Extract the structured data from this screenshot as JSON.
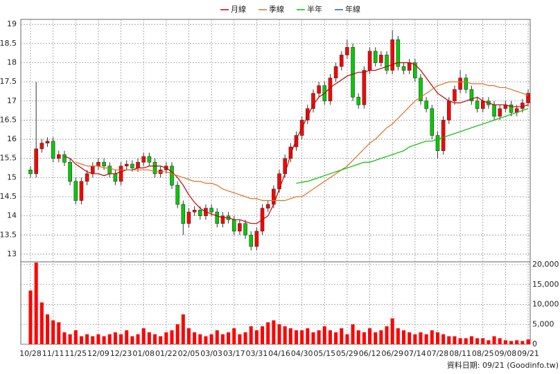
{
  "chart_data": {
    "type": "candlestick",
    "categories": [
      "10/28",
      null,
      null,
      null,
      "11/11",
      null,
      null,
      null,
      "11/25",
      null,
      null,
      null,
      "12/09",
      null,
      null,
      null,
      "12/23",
      null,
      null,
      null,
      "01/08",
      null,
      null,
      null,
      "01/22",
      null,
      null,
      null,
      "02/05",
      null,
      null,
      null,
      "03/03",
      null,
      null,
      null,
      "03/17",
      null,
      null,
      null,
      "03/31",
      null,
      null,
      null,
      "04/16",
      null,
      null,
      null,
      "04/30",
      null,
      null,
      null,
      "05/15",
      null,
      null,
      null,
      "05/29",
      null,
      null,
      null,
      "06/12",
      null,
      null,
      null,
      "06/29",
      null,
      null,
      null,
      "07/14",
      null,
      null,
      null,
      "07/28",
      null,
      null,
      null,
      "08/11",
      null,
      null,
      null,
      "08/25",
      null,
      null,
      null,
      "09/08",
      null,
      null,
      null,
      "09/21"
    ],
    "open": [
      15.2,
      15.1,
      15.75,
      15.9,
      15.95,
      15.5,
      15.6,
      15.4,
      14.9,
      14.4,
      14.9,
      15.1,
      15.3,
      15.4,
      15.3,
      15.1,
      14.9,
      15.3,
      15.35,
      15.25,
      15.4,
      15.55,
      15.4,
      15.1,
      15.2,
      15.3,
      14.8,
      14.3,
      13.8,
      14.1,
      14.15,
      14.0,
      14.2,
      14.1,
      13.8,
      14.0,
      13.9,
      13.6,
      13.8,
      13.5,
      13.2,
      13.6,
      14.2,
      14.3,
      14.7,
      15.1,
      15.5,
      15.8,
      16.1,
      16.5,
      16.8,
      17.2,
      17.4,
      17.0,
      17.6,
      17.9,
      18.2,
      18.4,
      17.1,
      16.9,
      17.8,
      18.3,
      18.0,
      18.2,
      17.8,
      18.6,
      17.9,
      17.8,
      18.0,
      17.6,
      17.0,
      16.8,
      16.1,
      15.7,
      16.5,
      17.0,
      17.3,
      17.6,
      17.3,
      17.0,
      16.8,
      17.0,
      16.9,
      16.6,
      16.8,
      16.9,
      16.7,
      16.8,
      16.95
    ],
    "high": [
      15.3,
      17.5,
      16.0,
      16.05,
      16.05,
      15.7,
      15.7,
      15.5,
      15.0,
      15.0,
      15.2,
      15.4,
      15.5,
      15.5,
      15.4,
      15.2,
      15.4,
      15.45,
      15.45,
      15.5,
      15.65,
      15.65,
      15.5,
      15.3,
      15.4,
      15.4,
      14.9,
      14.4,
      14.2,
      14.25,
      14.25,
      14.3,
      14.3,
      14.2,
      14.1,
      14.1,
      14.0,
      13.9,
      13.9,
      13.6,
      13.7,
      14.3,
      14.4,
      14.8,
      15.2,
      15.6,
      15.9,
      16.2,
      16.6,
      16.9,
      17.3,
      17.5,
      17.5,
      17.7,
      18.0,
      18.3,
      18.6,
      18.5,
      17.2,
      17.9,
      18.4,
      18.4,
      18.3,
      18.3,
      18.85,
      18.7,
      18.0,
      18.1,
      18.1,
      17.7,
      17.1,
      16.9,
      16.2,
      16.6,
      17.1,
      17.4,
      17.8,
      17.7,
      17.4,
      17.1,
      17.1,
      17.1,
      17.0,
      16.9,
      17.0,
      17.0,
      16.9,
      17.05,
      17.3
    ],
    "low": [
      15.0,
      15.0,
      15.65,
      15.8,
      15.4,
      15.4,
      15.3,
      14.8,
      14.3,
      14.3,
      14.8,
      15.0,
      15.2,
      15.2,
      15.0,
      14.8,
      14.8,
      15.2,
      15.15,
      15.15,
      15.3,
      15.3,
      15.0,
      15.0,
      15.1,
      14.7,
      14.2,
      13.5,
      13.7,
      14.0,
      13.9,
      13.9,
      14.0,
      13.7,
      13.7,
      13.8,
      13.5,
      13.5,
      13.4,
      13.1,
      13.1,
      13.5,
      14.1,
      14.2,
      14.6,
      15.0,
      15.4,
      15.7,
      16.0,
      16.4,
      16.7,
      17.1,
      16.9,
      16.9,
      17.5,
      17.8,
      18.1,
      17.0,
      16.8,
      16.8,
      17.7,
      17.9,
      17.9,
      17.7,
      17.7,
      17.8,
      17.7,
      17.7,
      17.5,
      16.9,
      16.7,
      16.0,
      15.5,
      15.6,
      16.4,
      16.9,
      17.2,
      17.2,
      16.9,
      16.7,
      16.7,
      16.8,
      16.5,
      16.5,
      16.7,
      16.6,
      16.6,
      16.7,
      16.85
    ],
    "close": [
      15.1,
      15.75,
      15.9,
      15.95,
      15.5,
      15.6,
      15.4,
      14.9,
      14.4,
      14.9,
      15.1,
      15.3,
      15.4,
      15.3,
      15.1,
      14.9,
      15.3,
      15.35,
      15.25,
      15.4,
      15.55,
      15.4,
      15.1,
      15.2,
      15.3,
      14.8,
      14.3,
      13.8,
      14.1,
      14.15,
      14.0,
      14.2,
      14.1,
      13.8,
      14.0,
      13.9,
      13.6,
      13.8,
      13.5,
      13.2,
      13.6,
      14.2,
      14.3,
      14.7,
      15.1,
      15.5,
      15.8,
      16.1,
      16.5,
      16.8,
      17.2,
      17.4,
      17.0,
      17.6,
      17.9,
      18.2,
      18.4,
      17.1,
      16.9,
      17.8,
      18.3,
      18.0,
      18.2,
      17.8,
      18.6,
      17.9,
      17.8,
      18.0,
      17.6,
      17.0,
      16.8,
      16.1,
      15.7,
      16.5,
      17.0,
      17.3,
      17.6,
      17.3,
      17.0,
      16.8,
      17.0,
      16.9,
      16.6,
      16.8,
      16.9,
      16.7,
      16.8,
      16.95,
      17.2
    ],
    "volume": [
      13500,
      20500,
      10500,
      7500,
      6000,
      5500,
      3000,
      2500,
      3500,
      2000,
      2500,
      2000,
      2500,
      2000,
      2500,
      3000,
      2500,
      3500,
      2000,
      2500,
      4000,
      3000,
      2500,
      2000,
      3000,
      3500,
      5000,
      7500,
      4000,
      3000,
      2500,
      2000,
      2500,
      3500,
      2500,
      3000,
      4000,
      2500,
      3000,
      4500,
      3500,
      4500,
      5500,
      6000,
      5000,
      4500,
      4000,
      3500,
      3500,
      4000,
      3000,
      3500,
      4500,
      3500,
      3000,
      4000,
      2500,
      5000,
      3500,
      3000,
      4000,
      3000,
      3500,
      4500,
      6500,
      4000,
      3500,
      3000,
      2500,
      3000,
      2500,
      3500,
      3000,
      2500,
      2000,
      2000,
      1500,
      1500,
      2000,
      1500,
      1500,
      1000,
      2000,
      1500,
      1000,
      800,
      1000,
      800,
      1200
    ],
    "up_color": "#ff0000",
    "down_color": "#00cc00",
    "volume_color": "#ff0000",
    "series": [
      {
        "name": "月線",
        "color": "#c00000",
        "values": [
          null,
          null,
          null,
          null,
          null,
          null,
          15.55,
          15.5,
          15.35,
          15.25,
          15.15,
          15.1,
          15.1,
          15.05,
          15.1,
          15.1,
          15.15,
          15.2,
          15.2,
          15.25,
          15.25,
          15.3,
          15.3,
          15.3,
          15.25,
          15.15,
          15.0,
          14.8,
          14.55,
          14.35,
          14.2,
          14.1,
          14.05,
          14.0,
          13.95,
          13.95,
          13.9,
          13.9,
          13.85,
          13.8,
          13.8,
          13.9,
          14.0,
          14.3,
          14.7,
          15.1,
          15.6,
          16.0,
          16.3,
          16.6,
          16.9,
          17.1,
          17.2,
          17.35,
          17.45,
          17.55,
          17.65,
          17.7,
          17.75,
          17.75,
          17.8,
          17.8,
          17.85,
          17.9,
          17.95,
          18.0,
          18.0,
          18.0,
          17.95,
          17.8,
          17.6,
          17.4,
          17.2,
          17.1,
          17.0,
          16.95,
          16.95,
          17.0,
          17.05,
          17.1,
          17.0,
          16.95,
          16.9,
          16.9,
          16.9,
          16.85,
          16.85,
          16.85,
          16.9
        ]
      },
      {
        "name": "季線",
        "color": "#e07020",
        "values": [
          null,
          null,
          null,
          null,
          null,
          null,
          null,
          null,
          15.4,
          15.35,
          15.3,
          15.3,
          15.3,
          15.25,
          15.25,
          15.2,
          15.2,
          15.2,
          15.2,
          15.2,
          15.2,
          15.2,
          15.15,
          15.15,
          15.15,
          15.1,
          15.05,
          15.0,
          14.95,
          14.9,
          14.9,
          14.85,
          14.85,
          14.8,
          14.7,
          14.65,
          14.6,
          14.55,
          14.5,
          14.45,
          14.45,
          14.4,
          14.4,
          14.4,
          14.4,
          14.4,
          14.45,
          14.5,
          14.5,
          14.6,
          14.7,
          14.8,
          14.9,
          15.0,
          15.1,
          15.2,
          15.3,
          15.45,
          15.6,
          15.75,
          15.9,
          16.0,
          16.15,
          16.3,
          16.4,
          16.55,
          16.7,
          16.85,
          17.0,
          17.1,
          17.2,
          17.3,
          17.4,
          17.45,
          17.5,
          17.5,
          17.5,
          17.5,
          17.45,
          17.45,
          17.45,
          17.4,
          17.4,
          17.35,
          17.35,
          17.3,
          17.25,
          17.2,
          17.15
        ]
      },
      {
        "name": "半年",
        "color": "#00c000",
        "values": [
          null,
          null,
          null,
          null,
          null,
          null,
          null,
          null,
          null,
          null,
          null,
          null,
          null,
          null,
          null,
          null,
          null,
          null,
          null,
          null,
          null,
          null,
          null,
          null,
          null,
          null,
          null,
          null,
          null,
          null,
          null,
          null,
          null,
          null,
          null,
          null,
          null,
          null,
          null,
          null,
          null,
          null,
          null,
          null,
          null,
          null,
          null,
          14.85,
          14.88,
          14.9,
          14.95,
          15.0,
          15.05,
          15.1,
          15.15,
          15.2,
          15.25,
          15.3,
          15.35,
          15.4,
          15.4,
          15.45,
          15.5,
          15.55,
          15.6,
          15.65,
          15.7,
          15.8,
          15.85,
          15.9,
          15.95,
          15.95,
          16.0,
          16.05,
          16.1,
          16.15,
          16.2,
          16.25,
          16.3,
          16.35,
          16.4,
          16.45,
          16.5,
          16.55,
          16.6,
          16.65,
          16.7,
          16.75,
          16.8
        ]
      },
      {
        "name": "年線",
        "color": "#2060c0",
        "values": [
          null,
          null,
          null,
          null,
          null,
          null,
          null,
          null,
          null,
          null,
          null,
          null,
          null,
          null,
          null,
          null,
          null,
          null,
          null,
          null,
          null,
          null,
          null,
          null,
          null,
          null,
          null,
          null,
          null,
          null,
          null,
          null,
          null,
          null,
          null,
          null,
          null,
          null,
          null,
          null,
          null,
          null,
          null,
          null,
          null,
          null,
          null,
          null,
          null,
          null,
          null,
          null,
          null,
          null,
          null,
          null,
          null,
          null,
          null,
          null,
          null,
          null,
          null,
          null,
          null,
          null,
          null,
          null,
          null,
          null,
          null,
          null,
          null,
          null,
          null,
          null,
          null,
          null,
          null,
          null,
          null,
          null,
          null,
          null,
          null,
          null,
          null,
          null,
          null
        ]
      }
    ],
    "ylim": [
      12.8,
      19.13
    ],
    "yticks": [
      13,
      13.5,
      14,
      14.5,
      15,
      15.5,
      16,
      16.5,
      17,
      17.5,
      18,
      18.5,
      19
    ],
    "y2lim": [
      0,
      20700
    ],
    "y2ticks": [
      0,
      {
        "value": 5000,
        "label": "5,000"
      },
      {
        "value": 10000,
        "label": "10,000"
      },
      {
        "value": 15000,
        "label": "15,000"
      },
      {
        "value": 20000,
        "label": "20,000"
      }
    ],
    "grid": true,
    "footer": "資料日期: 09/21  (Goodinfo.tw)"
  }
}
